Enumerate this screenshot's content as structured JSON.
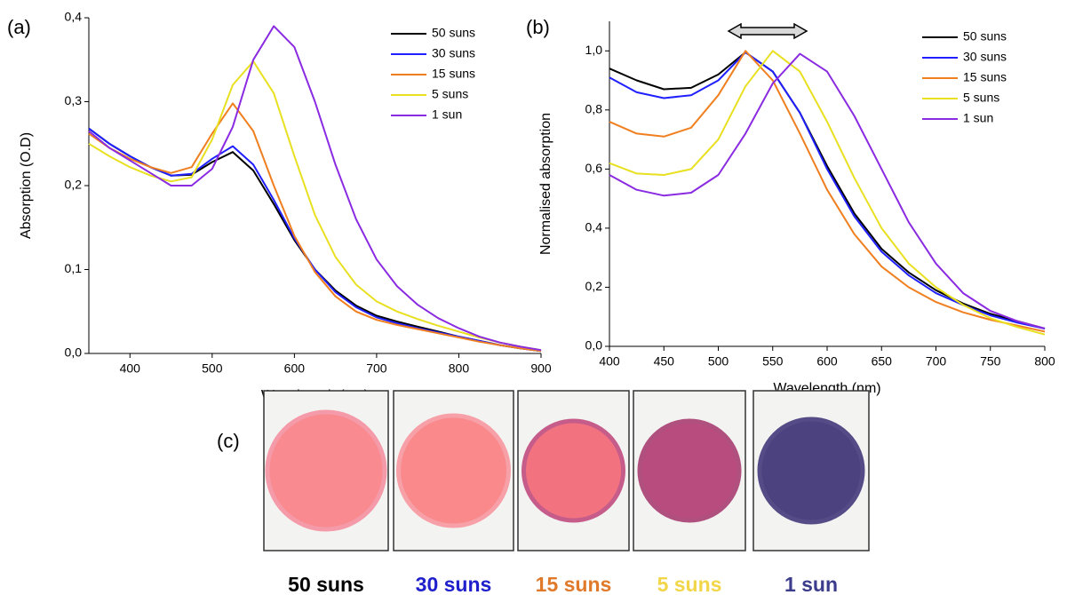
{
  "chart_data": [
    {
      "type": "line",
      "panel_label": "(a)",
      "x_label": "Wavelength (nm)",
      "y_label": "Absorption (O.D)",
      "x": [
        350,
        375,
        400,
        425,
        450,
        475,
        500,
        525,
        550,
        575,
        600,
        625,
        650,
        675,
        700,
        725,
        750,
        775,
        800,
        825,
        850,
        875,
        900
      ],
      "series": [
        {
          "name": "50 suns",
          "color": "#000000",
          "values": [
            0.268,
            0.25,
            0.235,
            0.222,
            0.212,
            0.213,
            0.228,
            0.24,
            0.218,
            0.178,
            0.135,
            0.1,
            0.075,
            0.057,
            0.045,
            0.038,
            0.032,
            0.026,
            0.02,
            0.015,
            0.01,
            0.006,
            0.003
          ]
        },
        {
          "name": "30 suns",
          "color": "#1f1fff",
          "values": [
            0.268,
            0.25,
            0.235,
            0.222,
            0.212,
            0.214,
            0.232,
            0.247,
            0.225,
            0.183,
            0.137,
            0.1,
            0.073,
            0.055,
            0.043,
            0.036,
            0.03,
            0.025,
            0.02,
            0.015,
            0.01,
            0.006,
            0.003
          ]
        },
        {
          "name": "15 suns",
          "color": "#f07f20",
          "values": [
            0.262,
            0.245,
            0.232,
            0.222,
            0.215,
            0.222,
            0.262,
            0.298,
            0.265,
            0.2,
            0.14,
            0.097,
            0.068,
            0.05,
            0.04,
            0.034,
            0.029,
            0.024,
            0.019,
            0.014,
            0.01,
            0.006,
            0.003
          ]
        },
        {
          "name": "5 suns",
          "color": "#e8e020",
          "values": [
            0.25,
            0.235,
            0.222,
            0.212,
            0.205,
            0.21,
            0.255,
            0.32,
            0.348,
            0.31,
            0.235,
            0.165,
            0.115,
            0.082,
            0.062,
            0.05,
            0.041,
            0.033,
            0.026,
            0.019,
            0.013,
            0.008,
            0.004
          ]
        },
        {
          "name": "1 sun",
          "color": "#8a2be2",
          "values": [
            0.265,
            0.245,
            0.23,
            0.215,
            0.2,
            0.2,
            0.22,
            0.27,
            0.35,
            0.39,
            0.365,
            0.3,
            0.225,
            0.16,
            0.112,
            0.08,
            0.058,
            0.042,
            0.03,
            0.02,
            0.013,
            0.008,
            0.004
          ]
        }
      ],
      "xlim": [
        350,
        900
      ],
      "xticks": [
        400,
        500,
        600,
        700,
        800,
        900
      ],
      "ylim": [
        0,
        0.4
      ],
      "yticks": [
        {
          "value": 0,
          "label": "0,0"
        },
        {
          "value": 0.1,
          "label": "0,1"
        },
        {
          "value": 0.2,
          "label": "0,2"
        },
        {
          "value": 0.3,
          "label": "0,3"
        },
        {
          "value": 0.4,
          "label": "0,4"
        }
      ],
      "legend": "upper right"
    },
    {
      "type": "line",
      "panel_label": "(b)",
      "x_label": "Wavelength (nm)",
      "y_label": "Normalised absorption",
      "x": [
        400,
        425,
        450,
        475,
        500,
        525,
        550,
        575,
        600,
        625,
        650,
        675,
        700,
        725,
        750,
        775,
        800
      ],
      "series": [
        {
          "name": "50 suns",
          "color": "#000000",
          "values": [
            0.94,
            0.9,
            0.87,
            0.875,
            0.92,
            0.995,
            0.93,
            0.79,
            0.61,
            0.45,
            0.33,
            0.25,
            0.19,
            0.145,
            0.11,
            0.085,
            0.06
          ]
        },
        {
          "name": "30 suns",
          "color": "#1f1fff",
          "values": [
            0.91,
            0.86,
            0.84,
            0.85,
            0.9,
            0.995,
            0.93,
            0.79,
            0.6,
            0.44,
            0.32,
            0.24,
            0.18,
            0.14,
            0.105,
            0.08,
            0.06
          ]
        },
        {
          "name": "15 suns",
          "color": "#f07f20",
          "values": [
            0.76,
            0.72,
            0.71,
            0.74,
            0.85,
            1.0,
            0.9,
            0.72,
            0.53,
            0.38,
            0.27,
            0.2,
            0.15,
            0.115,
            0.09,
            0.07,
            0.05
          ]
        },
        {
          "name": "5 suns",
          "color": "#e8e020",
          "values": [
            0.62,
            0.585,
            0.58,
            0.6,
            0.7,
            0.88,
            1.0,
            0.93,
            0.76,
            0.57,
            0.4,
            0.28,
            0.2,
            0.14,
            0.095,
            0.065,
            0.04
          ]
        },
        {
          "name": "1 sun",
          "color": "#8a2be2",
          "values": [
            0.58,
            0.53,
            0.51,
            0.52,
            0.58,
            0.72,
            0.89,
            0.99,
            0.93,
            0.78,
            0.6,
            0.42,
            0.28,
            0.18,
            0.12,
            0.085,
            0.06
          ]
        }
      ],
      "xlim": [
        400,
        800
      ],
      "xticks": [
        400,
        450,
        500,
        550,
        600,
        650,
        700,
        750,
        800
      ],
      "ylim": [
        0,
        1.1
      ],
      "yticks": [
        {
          "value": 0,
          "label": "0,0"
        },
        {
          "value": 0.2,
          "label": "0,2"
        },
        {
          "value": 0.4,
          "label": "0,4"
        },
        {
          "value": 0.6,
          "label": "0,6"
        },
        {
          "value": 0.8,
          "label": "0,8"
        },
        {
          "value": 1.0,
          "label": "1,0"
        }
      ],
      "legend": "upper right"
    }
  ],
  "panel_c": {
    "label": "(c)",
    "samples": [
      {
        "name": "50 suns",
        "color": "#000000"
      },
      {
        "name": "30 suns",
        "color": "#1f1fcc"
      },
      {
        "name": "15 suns",
        "color": "#e07a2a"
      },
      {
        "name": "5 suns",
        "color": "#f2d64a"
      },
      {
        "name": "1 sun",
        "color": "#3c3c8c"
      }
    ]
  }
}
